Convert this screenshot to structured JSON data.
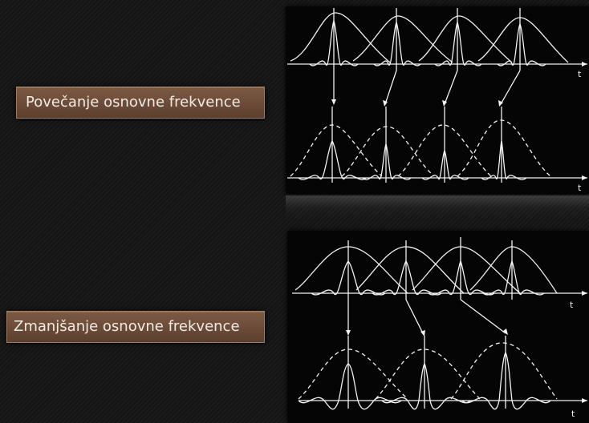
{
  "labels": {
    "increase": "Povečanje osnovne frekvence",
    "decrease": "Zmanjšanje osnovne frekvence"
  },
  "diagrams": {
    "axis_label": "t",
    "line_color": "#f2f2f2",
    "background_color": "#050505"
  }
}
